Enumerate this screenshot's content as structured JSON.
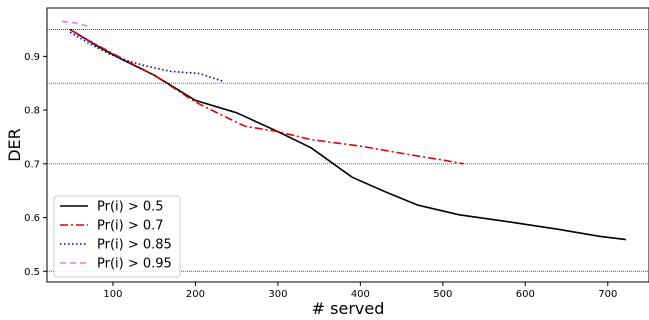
{
  "chart_data": {
    "type": "line",
    "xlabel": "# served",
    "ylabel": "DER",
    "xlim": [
      20,
      750
    ],
    "ylim": [
      0.48,
      0.99
    ],
    "xticks": [
      100,
      200,
      300,
      400,
      500,
      600,
      700
    ],
    "yticks": [
      0.5,
      0.6,
      0.7,
      0.8,
      0.9
    ],
    "grid": false,
    "legend_position": "bottom-left",
    "hlines": [
      {
        "y": 0.95,
        "color": "#008000"
      },
      {
        "y": 0.85,
        "color": "#008000"
      },
      {
        "y": 0.7,
        "color": "#008000"
      },
      {
        "y": 0.5,
        "color": "#008000"
      }
    ],
    "series": [
      {
        "name": "Pr(i) > 0.5",
        "color": "#000000",
        "style": "solid",
        "x": [
          48,
          80,
          110,
          150,
          200,
          250,
          300,
          340,
          390,
          430,
          470,
          520,
          580,
          640,
          690,
          722
        ],
        "y": [
          0.95,
          0.92,
          0.895,
          0.865,
          0.818,
          0.795,
          0.76,
          0.73,
          0.675,
          0.648,
          0.623,
          0.605,
          0.592,
          0.578,
          0.565,
          0.559
        ]
      },
      {
        "name": "Pr(i) > 0.7",
        "color": "#e00000",
        "style": "dashdot",
        "x": [
          50,
          70,
          100,
          150,
          200,
          230,
          260,
          300,
          340,
          400,
          460,
          500,
          525
        ],
        "y": [
          0.948,
          0.93,
          0.905,
          0.865,
          0.815,
          0.792,
          0.77,
          0.76,
          0.745,
          0.733,
          0.717,
          0.707,
          0.7
        ]
      },
      {
        "name": "Pr(i) > 0.85",
        "color": "#0000cc",
        "style": "dotted",
        "x": [
          48,
          70,
          95,
          115,
          140,
          170,
          205,
          220,
          235
        ],
        "y": [
          0.945,
          0.925,
          0.905,
          0.893,
          0.882,
          0.872,
          0.868,
          0.86,
          0.853
        ]
      },
      {
        "name": "Pr(i) > 0.95",
        "color": "#ee77dd",
        "style": "dashed",
        "x": [
          38,
          55,
          72
        ],
        "y": [
          0.965,
          0.962,
          0.955
        ]
      }
    ]
  }
}
